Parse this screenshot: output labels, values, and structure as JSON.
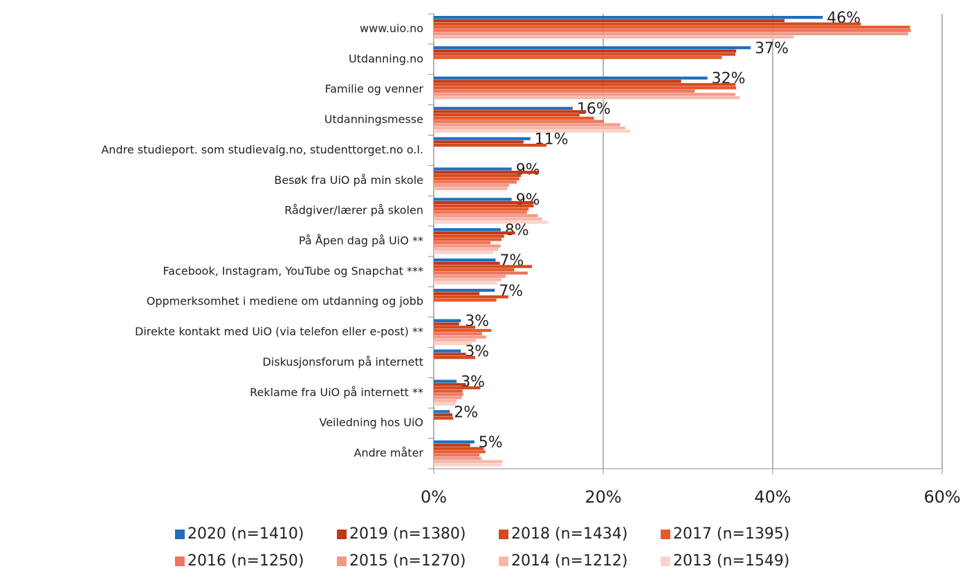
{
  "chart_data": {
    "type": "bar",
    "orientation": "horizontal",
    "categories": [
      "www.uio.no",
      "Utdanning.no",
      "Familie og venner",
      "Utdanningsmesse",
      "Andre studieport. som studievalg.no, studenttorget.no o.l.",
      "Besøk fra UiO på min skole",
      "Rådgiver/lærer på skolen",
      "På Åpen dag på UiO **",
      "Facebook, Instagram, YouTube og Snapchat ***",
      "Oppmerksomhet i mediene om utdanning og jobb",
      "Direkte kontakt med UiO (via telefon eller e-post) **",
      "Diskusjonsforum på internett",
      "Reklame fra UiO på internett **",
      "Veiledning hos UiO",
      "Andre måter"
    ],
    "series": [
      {
        "name": "2020 (n=1410)",
        "color": "#1f6fc0",
        "values": [
          45.9,
          37.4,
          32.3,
          16.4,
          11.4,
          9.2,
          9.2,
          7.9,
          7.3,
          7.2,
          3.2,
          3.2,
          2.7,
          1.9,
          4.8
        ],
        "value_labels": [
          "46%",
          "37%",
          "32%",
          "16%",
          "11%",
          "9%",
          "9%",
          "8%",
          "7%",
          "7%",
          "3%",
          "3%",
          "3%",
          "2%",
          "5%"
        ]
      },
      {
        "name": "2019 (n=1380)",
        "color": "#c0391c",
        "values": [
          41.4,
          35.7,
          29.2,
          18.0,
          10.6,
          12.4,
          11.8,
          9.6,
          7.8,
          5.4,
          3.0,
          3.8,
          3.8,
          2.2,
          4.3
        ]
      },
      {
        "name": "2018 (n=1434)",
        "color": "#d44a1e",
        "values": [
          50.4,
          35.6,
          35.6,
          17.2,
          13.3,
          10.3,
          11.8,
          8.3,
          11.6,
          8.8,
          4.9,
          4.9,
          5.5,
          2.3,
          5.9
        ]
      },
      {
        "name": "2017 (n=1395)",
        "color": "#e8592a",
        "values": [
          56.2,
          34.0,
          35.7,
          18.9,
          null,
          10.1,
          11.2,
          8.0,
          9.5,
          7.4,
          6.8,
          null,
          3.4,
          null,
          6.1
        ]
      },
      {
        "name": "2016 (n=1250)",
        "color": "#ee7561",
        "values": [
          56.3,
          null,
          30.8,
          20.1,
          null,
          9.8,
          11.0,
          6.7,
          11.1,
          null,
          5.7,
          null,
          3.5,
          null,
          5.4
        ]
      },
      {
        "name": "2015 (n=1270)",
        "color": "#f29a88",
        "values": [
          56.0,
          null,
          35.6,
          22.0,
          null,
          8.9,
          12.3,
          7.9,
          8.5,
          null,
          6.2,
          null,
          3.3,
          null,
          5.6
        ]
      },
      {
        "name": "2014 (n=1212)",
        "color": "#f6b8a9",
        "values": [
          42.5,
          null,
          36.1,
          22.6,
          null,
          8.7,
          12.8,
          7.6,
          8.0,
          null,
          5.0,
          null,
          2.7,
          null,
          8.1
        ]
      },
      {
        "name": "2013 (n=1549)",
        "color": "#f9d3ca",
        "values": [
          null,
          null,
          null,
          23.2,
          null,
          null,
          13.5,
          7.0,
          7.5,
          null,
          4.5,
          null,
          2.6,
          null,
          8.0
        ]
      }
    ],
    "xlim": [
      0,
      60
    ],
    "xticks": [
      {
        "value": 0,
        "label": "0%"
      },
      {
        "value": 20,
        "label": "20%"
      },
      {
        "value": 40,
        "label": "40%"
      },
      {
        "value": 60,
        "label": "60%"
      }
    ],
    "grid": true,
    "legend": "bottom"
  }
}
